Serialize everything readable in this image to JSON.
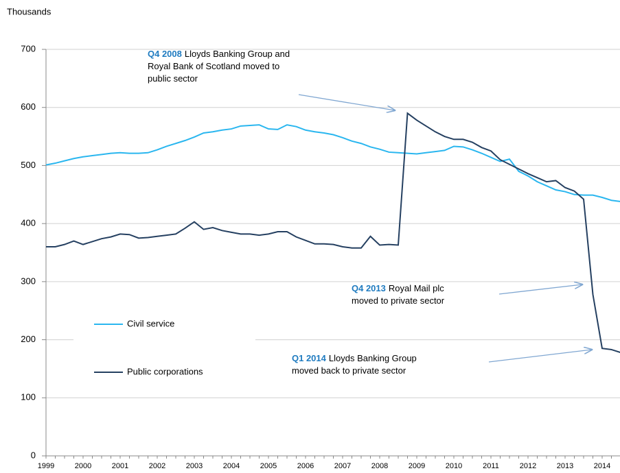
{
  "chart_data": {
    "type": "line",
    "y_label": "Thousands",
    "categories": [
      "1999",
      null,
      null,
      null,
      "2000",
      null,
      null,
      null,
      "2001",
      null,
      null,
      null,
      "2002",
      null,
      null,
      null,
      "2003",
      null,
      null,
      null,
      "2004",
      null,
      null,
      null,
      "2005",
      null,
      null,
      null,
      "2006",
      null,
      null,
      null,
      "2007",
      null,
      null,
      null,
      "2008",
      null,
      null,
      null,
      "2009",
      null,
      null,
      null,
      "2010",
      null,
      null,
      null,
      "2011",
      null,
      null,
      null,
      "2012",
      null,
      null,
      null,
      "2013",
      null,
      null,
      null,
      "2014",
      null,
      null
    ],
    "series": [
      {
        "name": "Civil service",
        "color": "#29b6ef",
        "values": [
          501,
          504,
          508,
          512,
          515,
          517,
          519,
          521,
          522,
          521,
          521,
          522,
          527,
          533,
          538,
          543,
          549,
          556,
          558,
          561,
          563,
          568,
          569,
          570,
          563,
          562,
          570,
          567,
          561,
          558,
          556,
          553,
          548,
          542,
          538,
          532,
          528,
          523,
          522,
          521,
          520,
          522,
          524,
          526,
          533,
          532,
          527,
          521,
          514,
          507,
          511,
          490,
          482,
          472,
          465,
          458,
          455,
          450,
          449,
          449,
          445,
          440,
          438
        ]
      },
      {
        "name": "Public corporations",
        "color": "#243f60",
        "values": [
          360,
          360,
          364,
          370,
          364,
          369,
          374,
          377,
          382,
          381,
          375,
          376,
          378,
          380,
          382,
          392,
          403,
          390,
          393,
          388,
          385,
          382,
          382,
          380,
          382,
          386,
          386,
          377,
          371,
          365,
          365,
          364,
          360,
          358,
          358,
          378,
          363,
          364,
          363,
          590,
          578,
          568,
          558,
          550,
          545,
          545,
          540,
          531,
          525,
          510,
          502,
          494,
          486,
          479,
          472,
          474,
          462,
          456,
          442,
          278,
          185,
          183,
          178
        ]
      }
    ],
    "ylim": [
      0,
      700
    ],
    "yticks": [
      0,
      100,
      200,
      300,
      400,
      500,
      600,
      700
    ],
    "grid": true,
    "annotations": [
      {
        "highlight": "Q4 2008",
        "lines": [
          "Lloyds Banking Group and",
          "Royal Bank of Scotland moved to",
          "public sector"
        ]
      },
      {
        "highlight": "Q4 2013",
        "lines": [
          "Royal Mail plc",
          "moved to private sector"
        ]
      },
      {
        "highlight": "Q1 2014",
        "lines": [
          "Lloyds Banking Group",
          "moved back to private sector"
        ]
      }
    ]
  }
}
